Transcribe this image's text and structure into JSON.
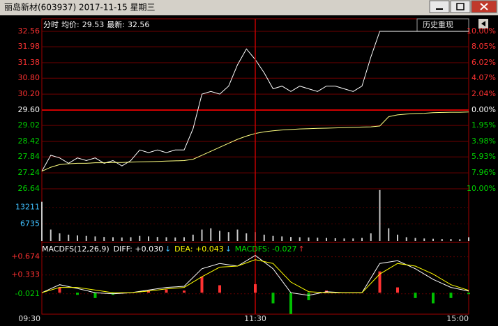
{
  "window": {
    "title": "丽岛新材(603937) 2017-11-15 星期三"
  },
  "toolbar": {
    "replay": "历史重现"
  },
  "chart_data": [
    {
      "type": "line",
      "series": [
        {
          "name": "分时",
          "color": "#ffffff",
          "x": [
            0,
            5,
            10,
            15,
            20,
            25,
            30,
            35,
            40,
            45,
            50,
            55,
            60,
            65,
            70,
            75,
            80,
            85,
            90,
            95,
            100,
            105,
            110,
            115,
            120,
            125,
            130,
            135,
            140,
            145,
            150,
            155,
            160,
            165,
            170,
            175,
            180,
            185,
            190,
            195,
            200,
            205,
            210,
            215,
            220,
            225,
            230,
            235,
            240
          ],
          "values": [
            27.3,
            27.9,
            27.8,
            27.6,
            27.8,
            27.7,
            27.8,
            27.6,
            27.7,
            27.5,
            27.7,
            28.1,
            28.0,
            28.1,
            28.0,
            28.1,
            28.1,
            28.9,
            30.2,
            30.3,
            30.2,
            30.5,
            31.3,
            31.9,
            31.5,
            31.0,
            30.4,
            30.5,
            30.3,
            30.5,
            30.4,
            30.3,
            30.5,
            30.5,
            30.4,
            30.3,
            30.5,
            31.6,
            32.56,
            32.56,
            32.56,
            32.56,
            32.56,
            32.56,
            32.56,
            32.56,
            32.56,
            32.56,
            32.56
          ]
        },
        {
          "name": "均价:",
          "color": "#ffff80",
          "x": [
            0,
            5,
            10,
            15,
            20,
            25,
            30,
            35,
            40,
            45,
            50,
            55,
            60,
            65,
            70,
            75,
            80,
            85,
            90,
            95,
            100,
            105,
            110,
            115,
            120,
            125,
            130,
            135,
            140,
            145,
            150,
            155,
            160,
            165,
            170,
            175,
            180,
            185,
            190,
            195,
            200,
            205,
            210,
            215,
            220,
            225,
            230,
            235,
            240
          ],
          "values": [
            27.3,
            27.45,
            27.55,
            27.58,
            27.6,
            27.6,
            27.62,
            27.62,
            27.63,
            27.63,
            27.64,
            27.65,
            27.66,
            27.67,
            27.68,
            27.69,
            27.7,
            27.75,
            27.9,
            28.05,
            28.2,
            28.35,
            28.5,
            28.62,
            28.72,
            28.78,
            28.82,
            28.85,
            28.87,
            28.89,
            28.9,
            28.91,
            28.92,
            28.93,
            28.94,
            28.95,
            28.96,
            28.97,
            29.0,
            29.35,
            29.42,
            29.45,
            29.47,
            29.48,
            29.5,
            29.51,
            29.52,
            29.52,
            29.53
          ]
        }
      ],
      "average": 29.53,
      "latest_label": "最新:",
      "latest": 32.56,
      "xlim": [
        0,
        240
      ],
      "ylim": [
        26.64,
        32.56
      ],
      "yticks": [
        {
          "value": 32.56,
          "label": "32.56"
        },
        {
          "value": 31.98,
          "label": "31.98"
        },
        {
          "value": 31.38,
          "label": "31.38"
        },
        {
          "value": 30.8,
          "label": "30.80"
        },
        {
          "value": 30.2,
          "label": "30.20"
        },
        {
          "value": 29.6,
          "label": "29.60"
        },
        {
          "value": 29.02,
          "label": "29.02"
        },
        {
          "value": 28.42,
          "label": "28.42"
        },
        {
          "value": 27.84,
          "label": "27.84"
        },
        {
          "value": 27.24,
          "label": "27.24"
        },
        {
          "value": 26.64,
          "label": "26.64"
        }
      ],
      "y2lim": [
        -10,
        10
      ],
      "y2ticks": [
        {
          "value": 10,
          "label": "10.00%"
        },
        {
          "value": 8.05,
          "label": "8.05%"
        },
        {
          "value": 6.02,
          "label": "6.02%"
        },
        {
          "value": 4.07,
          "label": "4.07%"
        },
        {
          "value": 2.04,
          "label": "2.04%"
        },
        {
          "value": 0,
          "label": "0.00%"
        },
        {
          "value": -1.95,
          "label": "1.95%"
        },
        {
          "value": -3.98,
          "label": "3.98%"
        },
        {
          "value": -5.93,
          "label": "5.93%"
        },
        {
          "value": -7.96,
          "label": "7.96%"
        },
        {
          "value": -10,
          "label": "10.00%"
        }
      ],
      "grid": true
    },
    {
      "type": "bar",
      "color": "#c8c8c8",
      "x": [
        0,
        5,
        10,
        15,
        20,
        25,
        30,
        35,
        40,
        45,
        50,
        55,
        60,
        65,
        70,
        75,
        80,
        85,
        90,
        95,
        100,
        105,
        110,
        115,
        120,
        125,
        130,
        135,
        140,
        145,
        150,
        155,
        160,
        165,
        170,
        175,
        180,
        185,
        190,
        195,
        200,
        205,
        210,
        215,
        220,
        225,
        230,
        235,
        240
      ],
      "values": [
        15400,
        4500,
        3000,
        2500,
        2200,
        2000,
        1800,
        1600,
        1500,
        1400,
        1500,
        2000,
        1800,
        1600,
        1500,
        1400,
        1500,
        2500,
        4500,
        5000,
        4000,
        3500,
        4500,
        3000,
        3500,
        2500,
        2000,
        1800,
        1600,
        1500,
        1400,
        1300,
        1200,
        1100,
        1000,
        1000,
        1200,
        3000,
        20000,
        5000,
        2500,
        1500,
        1200,
        1000,
        900,
        800,
        800,
        700,
        1500
      ],
      "xlim": [
        0,
        240
      ],
      "ylim": [
        0,
        20500
      ],
      "yticks": [
        6735,
        13211
      ],
      "grid": true
    },
    {
      "type": "macd",
      "title": "MACDFS(12,26,9)",
      "x": [
        0,
        10,
        20,
        30,
        40,
        50,
        60,
        70,
        80,
        90,
        100,
        110,
        120,
        130,
        140,
        150,
        160,
        170,
        180,
        190,
        200,
        210,
        220,
        230,
        240
      ],
      "series": [
        {
          "name": "DIFF: +0.030",
          "color": "#ffffff",
          "values": [
            0,
            0.15,
            0.08,
            0,
            -0.02,
            0,
            0.05,
            0.1,
            0.12,
            0.45,
            0.55,
            0.5,
            0.7,
            0.45,
            0,
            -0.05,
            0.02,
            0,
            0,
            0.55,
            0.6,
            0.45,
            0.25,
            0.1,
            0.03
          ]
        },
        {
          "name": "DEA: +0.043",
          "color": "#ffff00",
          "values": [
            0,
            0.1,
            0.1,
            0.05,
            0,
            0,
            0.03,
            0.07,
            0.1,
            0.3,
            0.48,
            0.5,
            0.62,
            0.55,
            0.2,
            0.02,
            0,
            0,
            0,
            0.35,
            0.55,
            0.5,
            0.35,
            0.15,
            0.043
          ]
        },
        {
          "name": "MACDFS: -0.027",
          "color": "#00e000",
          "up_color": "#ff3232",
          "down_color": "#00c000",
          "values": [
            0,
            0.1,
            -0.04,
            -0.1,
            -0.04,
            0,
            0.04,
            0.06,
            0.04,
            0.3,
            0.14,
            0,
            0.16,
            -0.2,
            -0.4,
            -0.14,
            0.04,
            0,
            0,
            0.4,
            0.1,
            -0.1,
            -0.2,
            -0.1,
            -0.027
          ]
        }
      ],
      "xlim": [
        0,
        240
      ],
      "ylim": [
        -0.39,
        0.84
      ],
      "yticks": [
        {
          "value": 0.674,
          "label": "+0.674"
        },
        {
          "value": 0.333,
          "label": "+0.333"
        },
        {
          "value": -0.021,
          "label": "-0.021"
        }
      ],
      "xticks": [
        {
          "value": 0,
          "label": "09:30"
        },
        {
          "value": 120,
          "label": "11:30"
        },
        {
          "value": 240,
          "label": "15:00"
        }
      ],
      "grid": true
    }
  ]
}
